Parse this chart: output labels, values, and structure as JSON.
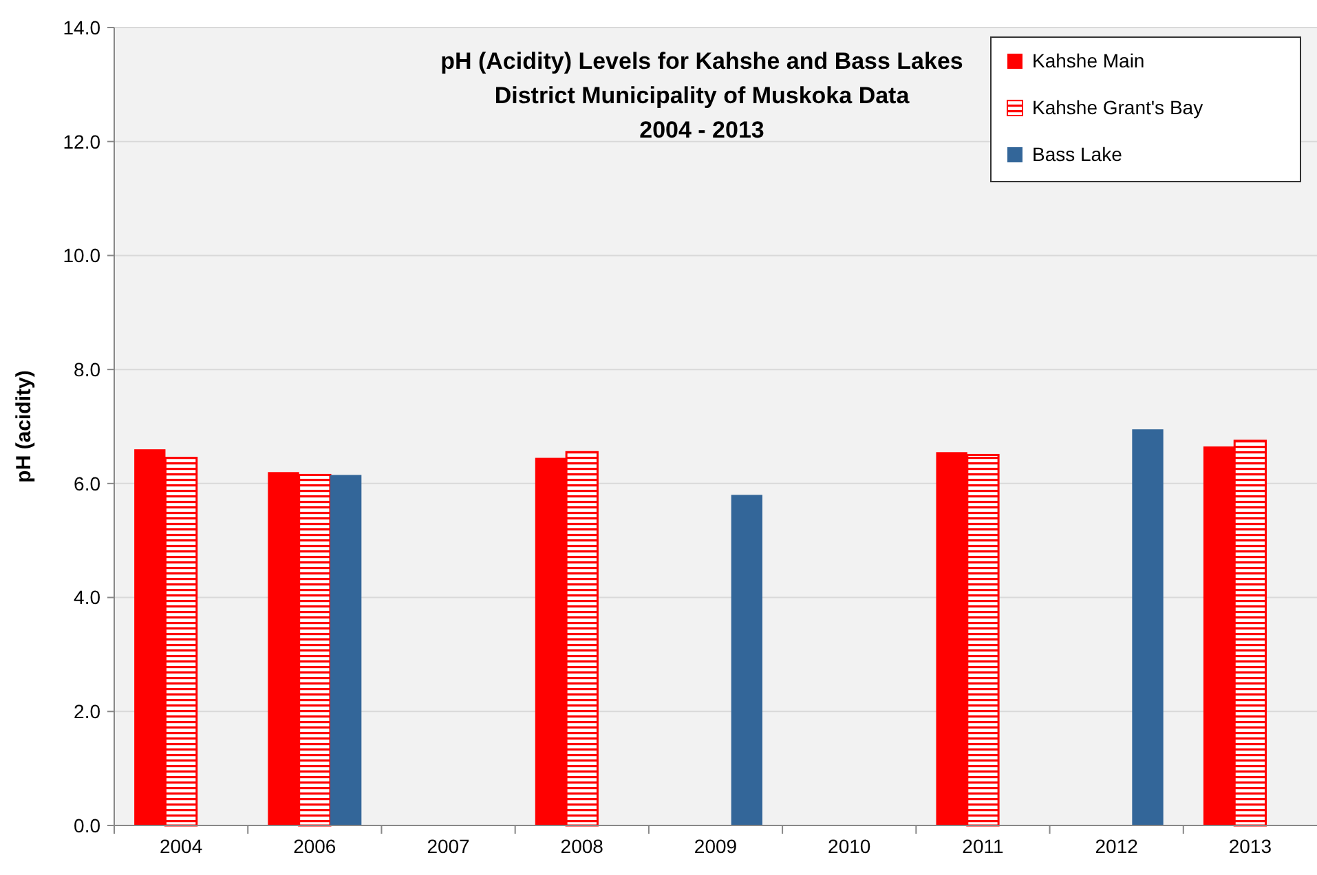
{
  "chart_data": {
    "type": "bar",
    "title": "pH (Acidity) Levels for Kahshe and Bass Lakes\nDistrict Municipality of Muskoka Data\n2004 - 2013",
    "ylabel": "pH (acidity)",
    "categories": [
      "2004",
      "2006",
      "2007",
      "2008",
      "2009",
      "2010",
      "2011",
      "2012",
      "2013"
    ],
    "series": [
      {
        "name": "Kahshe Main",
        "color": "#ff0000",
        "values": [
          6.6,
          6.2,
          null,
          6.45,
          null,
          null,
          6.55,
          null,
          6.65
        ]
      },
      {
        "name": "Kahshe Grant's Bay",
        "color": "#ff0000",
        "values": [
          6.45,
          6.15,
          null,
          6.55,
          null,
          null,
          6.5,
          null,
          6.75
        ]
      },
      {
        "name": "Bass Lake",
        "color": "#336699",
        "values": [
          null,
          6.15,
          null,
          null,
          5.8,
          null,
          null,
          6.95,
          null
        ]
      }
    ],
    "ylim": [
      0,
      14
    ],
    "yticks": [
      {
        "value": 0,
        "label": "0.0"
      },
      {
        "value": 2,
        "label": "2.0"
      },
      {
        "value": 4,
        "label": "4.0"
      },
      {
        "value": 6,
        "label": "6.0"
      },
      {
        "value": 8,
        "label": "8.0"
      },
      {
        "value": 10,
        "label": "10.0"
      },
      {
        "value": 12,
        "label": "12.0"
      },
      {
        "value": 14,
        "label": "14.0"
      }
    ],
    "grid": "y",
    "legend": "top right"
  }
}
